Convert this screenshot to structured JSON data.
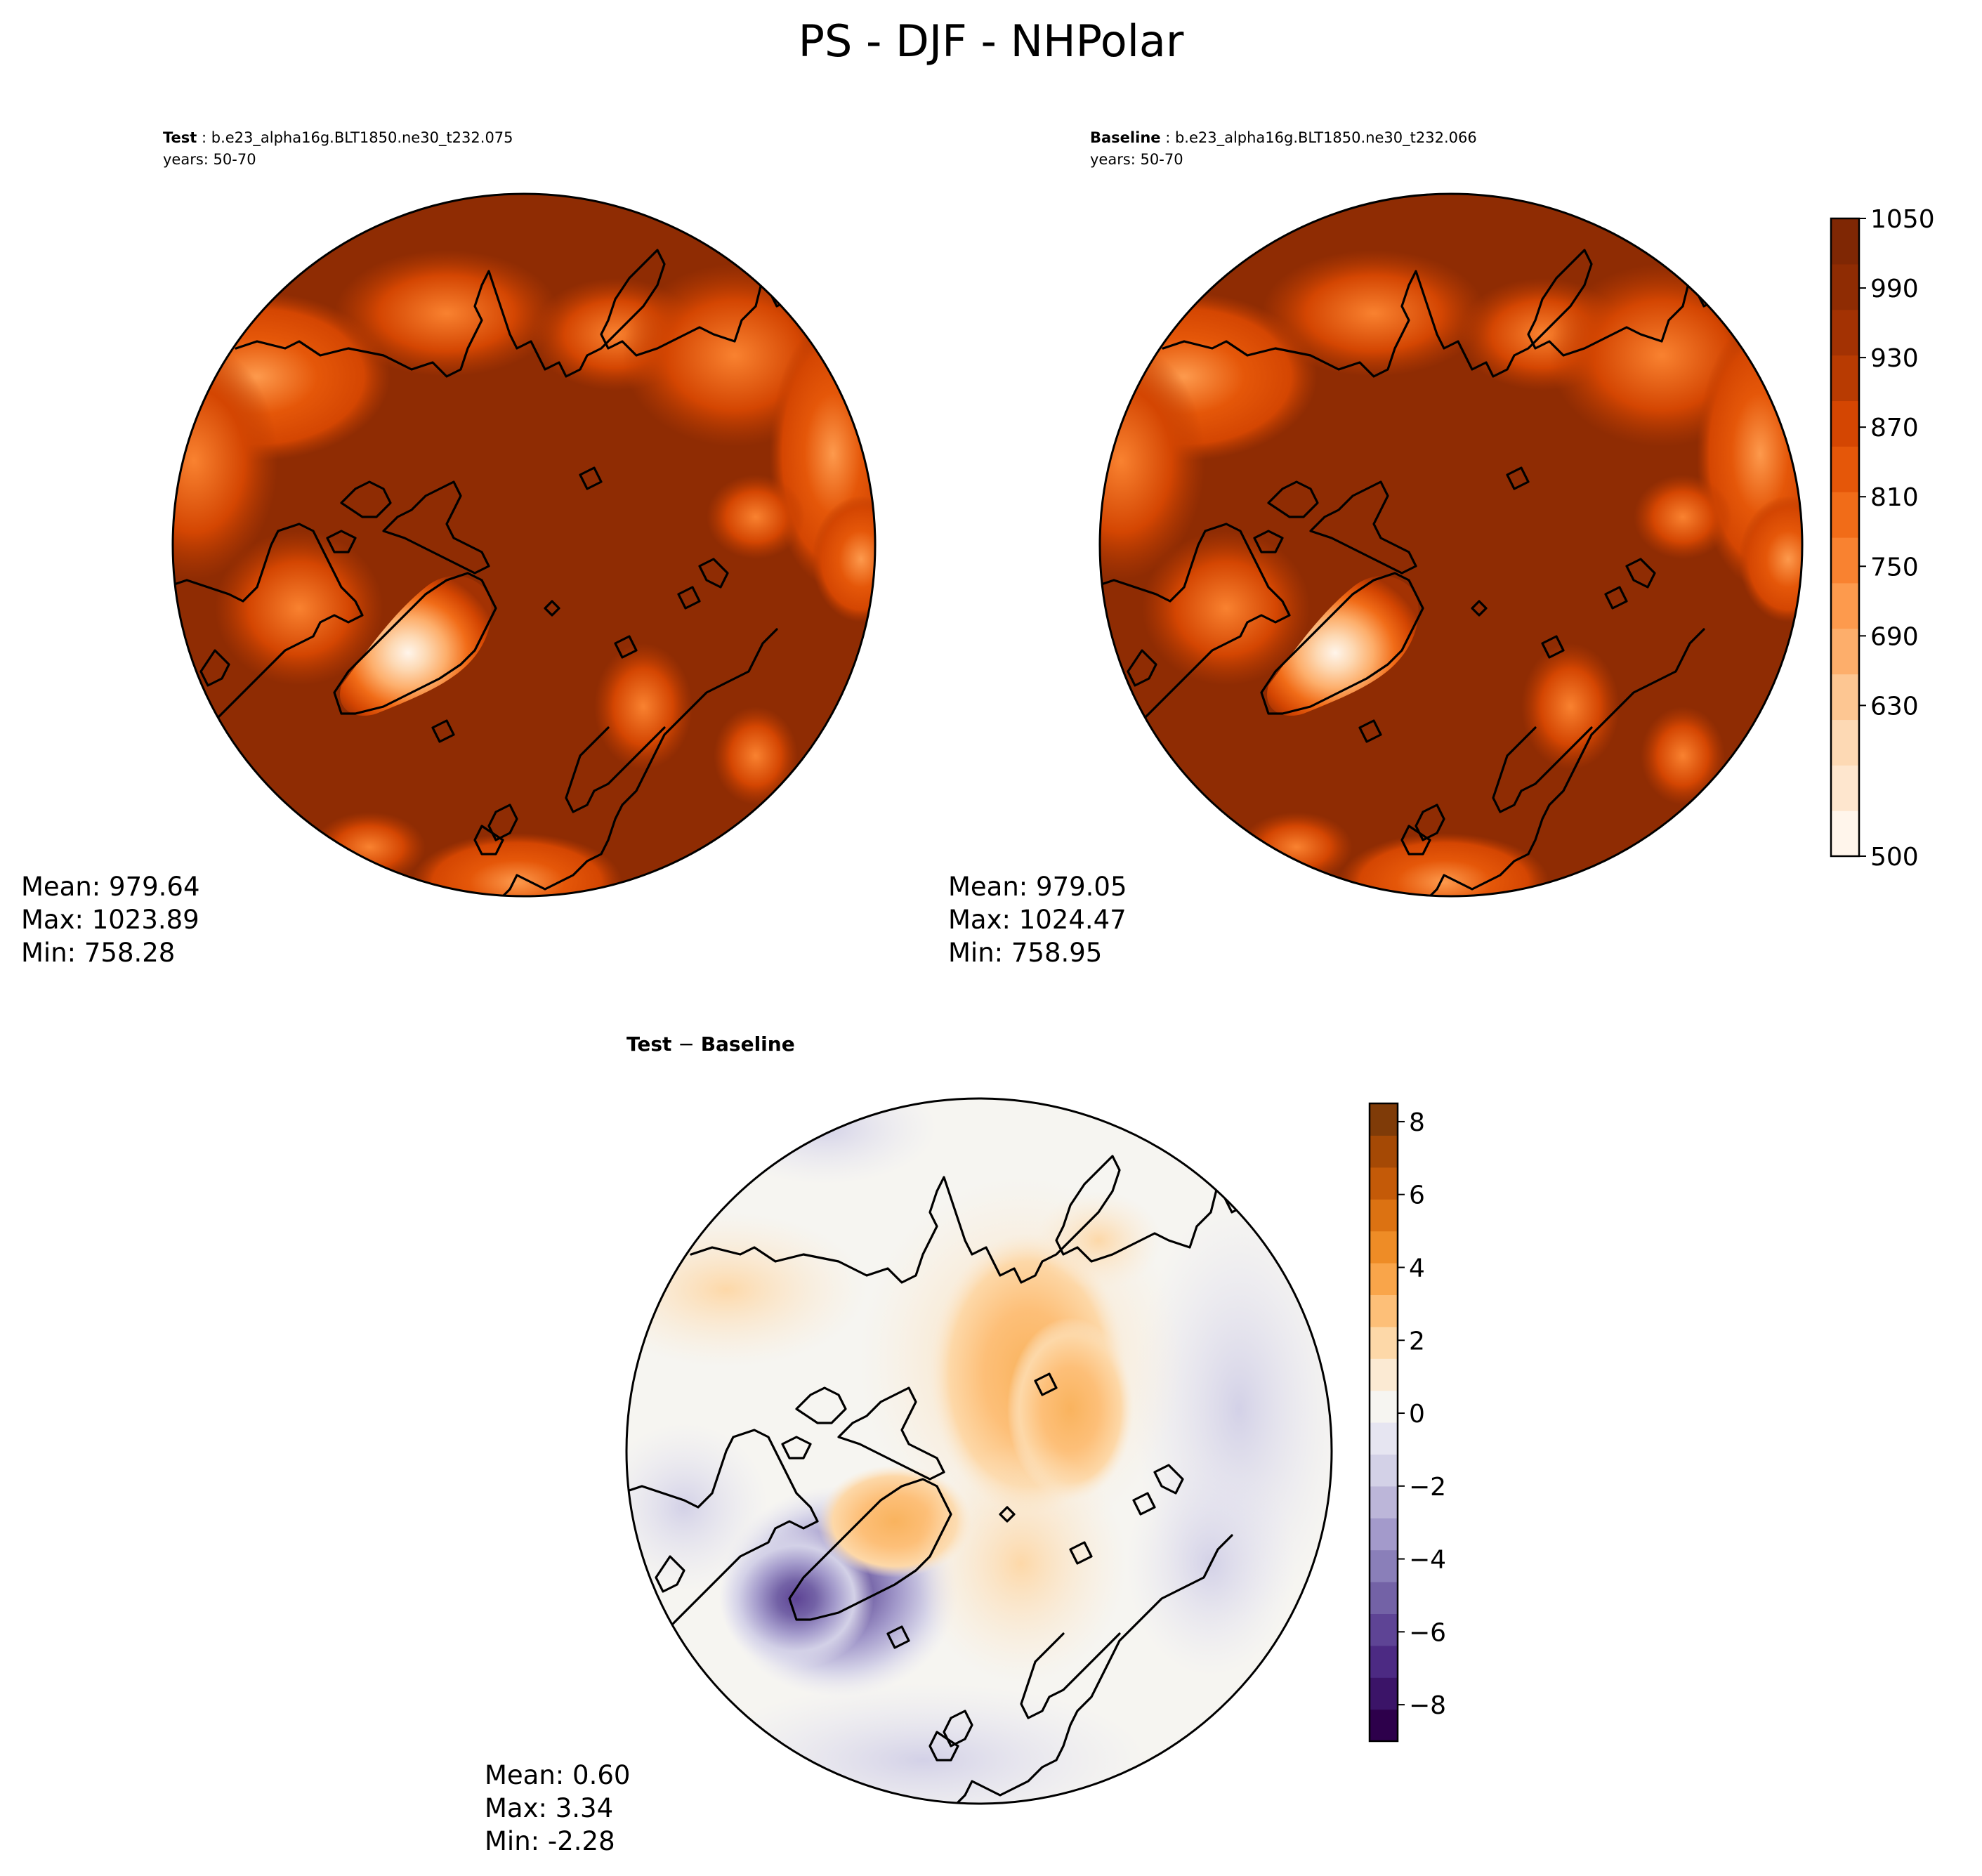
{
  "page_title": "PS - DJF - NHPolar",
  "panels": {
    "test": {
      "label_bold": "Test",
      "label_rest": " : b.e23_alpha16g.BLT1850.ne30_t232.075",
      "years": "years: 50-70",
      "stats": [
        "Mean: 979.64",
        "Max: 1023.89",
        "Min: 758.28"
      ]
    },
    "baseline": {
      "label_bold": "Baseline",
      "label_rest": " : b.e23_alpha16g.BLT1850.ne30_t232.066",
      "years": "years: 50-70",
      "stats": [
        "Mean: 979.05",
        "Max: 1024.47",
        "Min: 758.95"
      ]
    },
    "diff": {
      "label_a": "Test",
      "label_op": " − ",
      "label_b": "Baseline",
      "stats": [
        "Mean:  0.60",
        "Max:  3.34",
        "Min: -2.28"
      ]
    }
  },
  "chart_data": [
    {
      "type": "heatmap",
      "name": "Test",
      "projection": "north polar stereographic",
      "field": "PS",
      "stats": {
        "mean": 979.64,
        "max": 1023.89,
        "min": 758.28
      },
      "colormap": "Oranges",
      "colorbar": "shared"
    },
    {
      "type": "heatmap",
      "name": "Baseline",
      "projection": "north polar stereographic",
      "field": "PS",
      "stats": {
        "mean": 979.05,
        "max": 1024.47,
        "min": 758.95
      },
      "colormap": "Oranges",
      "colorbar": {
        "range": [
          500,
          1050
        ],
        "ticks": [
          "500",
          "630",
          "690",
          "750",
          "810",
          "870",
          "930",
          "990",
          "1050"
        ],
        "colors": [
          "#fff5eb",
          "#fee6ce",
          "#fdd9b4",
          "#fdc692",
          "#fdae6b",
          "#fd9a4d",
          "#f98230",
          "#f16c18",
          "#e55709",
          "#d44602",
          "#b83b02",
          "#a33203",
          "#8f2c03",
          "#7f2704"
        ]
      }
    },
    {
      "type": "heatmap",
      "name": "Test − Baseline",
      "projection": "north polar stereographic",
      "field": "PS difference",
      "stats": {
        "mean": 0.6,
        "max": 3.34,
        "min": -2.28
      },
      "colormap": "PuOr_r",
      "colorbar": {
        "range": [
          -9,
          8.5
        ],
        "ticks": [
          "−8",
          "−6",
          "−4",
          "−2",
          "0",
          "2",
          "4",
          "6",
          "8"
        ],
        "colors": [
          "#2d004b",
          "#3b1468",
          "#4c2a83",
          "#5e4495",
          "#7362a6",
          "#8a7fb9",
          "#a39acb",
          "#bcb6d9",
          "#d3d1e7",
          "#e6e5f1",
          "#f6f5f1",
          "#fbead3",
          "#fdd8a8",
          "#fdbf78",
          "#f9a54a",
          "#ee8c26",
          "#dc7212",
          "#c45a08",
          "#a54905",
          "#7f3b08"
        ]
      }
    }
  ]
}
